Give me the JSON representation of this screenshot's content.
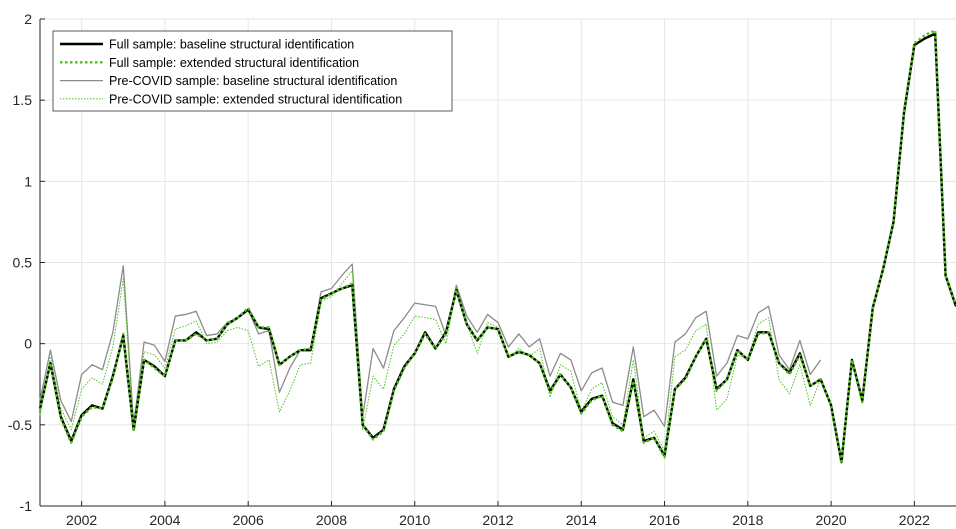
{
  "chart_data": {
    "type": "line",
    "title": "",
    "xlabel": "",
    "ylabel": "",
    "xlim": [
      2001,
      2023
    ],
    "ylim": [
      -1,
      2
    ],
    "grid": true,
    "legend_position": "top-left",
    "xticks": [
      2002,
      2004,
      2006,
      2008,
      2010,
      2012,
      2014,
      2016,
      2018,
      2020,
      2022
    ],
    "xtick_labels": [
      "2002",
      "2004",
      "2006",
      "2008",
      "2010",
      "2012",
      "2014",
      "2016",
      "2018",
      "2020",
      "2022"
    ],
    "yticks": [
      -1,
      -0.5,
      0,
      0.5,
      1,
      1.5,
      2
    ],
    "ytick_labels": [
      "-1",
      "-0.5",
      "0",
      "0.5",
      "1",
      "1.5",
      "2"
    ],
    "series": [
      {
        "name": "Full sample: baseline structural identification",
        "color": "#000000",
        "style": "solid-thick",
        "x": [
          2001.0,
          2001.25,
          2001.5,
          2001.75,
          2002.0,
          2002.25,
          2002.5,
          2002.75,
          2003.0,
          2003.25,
          2003.5,
          2003.75,
          2004.0,
          2004.25,
          2004.5,
          2004.75,
          2005.0,
          2005.25,
          2005.5,
          2005.75,
          2006.0,
          2006.25,
          2006.5,
          2006.75,
          2007.0,
          2007.25,
          2007.5,
          2007.75,
          2008.0,
          2008.25,
          2008.5,
          2008.75,
          2009.0,
          2009.25,
          2009.5,
          2009.75,
          2010.0,
          2010.25,
          2010.5,
          2010.75,
          2011.0,
          2011.25,
          2011.5,
          2011.75,
          2012.0,
          2012.25,
          2012.5,
          2012.75,
          2013.0,
          2013.25,
          2013.5,
          2013.75,
          2014.0,
          2014.25,
          2014.5,
          2014.75,
          2015.0,
          2015.25,
          2015.5,
          2015.75,
          2016.0,
          2016.25,
          2016.5,
          2016.75,
          2017.0,
          2017.25,
          2017.5,
          2017.75,
          2018.0,
          2018.25,
          2018.5,
          2018.75,
          2019.0,
          2019.25,
          2019.5,
          2019.75,
          2020.0,
          2020.25,
          2020.5,
          2020.75,
          2021.0,
          2021.25,
          2021.5,
          2021.75,
          2022.0,
          2022.25,
          2022.5,
          2022.75,
          2023.0
        ],
        "y": [
          -0.4,
          -0.12,
          -0.45,
          -0.6,
          -0.44,
          -0.38,
          -0.4,
          -0.2,
          0.05,
          -0.53,
          -0.1,
          -0.14,
          -0.2,
          0.02,
          0.02,
          0.07,
          0.02,
          0.03,
          0.12,
          0.16,
          0.21,
          0.1,
          0.09,
          -0.13,
          -0.08,
          -0.04,
          -0.04,
          0.28,
          0.31,
          0.34,
          0.36,
          -0.5,
          -0.58,
          -0.53,
          -0.28,
          -0.14,
          -0.06,
          0.07,
          -0.03,
          0.07,
          0.33,
          0.12,
          0.02,
          0.1,
          0.09,
          -0.08,
          -0.05,
          -0.07,
          -0.12,
          -0.29,
          -0.19,
          -0.27,
          -0.42,
          -0.34,
          -0.32,
          -0.49,
          -0.53,
          -0.22,
          -0.6,
          -0.58,
          -0.69,
          -0.28,
          -0.21,
          -0.08,
          0.03,
          -0.28,
          -0.22,
          -0.04,
          -0.1,
          0.07,
          0.07,
          -0.12,
          -0.18,
          -0.06,
          -0.26,
          -0.22,
          -0.38,
          -0.73,
          -0.1,
          -0.35,
          0.22,
          0.46,
          0.75,
          1.42,
          1.84,
          1.88,
          1.91,
          0.42,
          0.23
        ]
      },
      {
        "name": "Full sample: extended structural identification",
        "color": "#4cc219",
        "style": "dotted-thick",
        "x": [
          2001.0,
          2001.25,
          2001.5,
          2001.75,
          2002.0,
          2002.25,
          2002.5,
          2002.75,
          2003.0,
          2003.25,
          2003.5,
          2003.75,
          2004.0,
          2004.25,
          2004.5,
          2004.75,
          2005.0,
          2005.25,
          2005.5,
          2005.75,
          2006.0,
          2006.25,
          2006.5,
          2006.75,
          2007.0,
          2007.25,
          2007.5,
          2007.75,
          2008.0,
          2008.25,
          2008.5,
          2008.75,
          2009.0,
          2009.25,
          2009.5,
          2009.75,
          2010.0,
          2010.25,
          2010.5,
          2010.75,
          2011.0,
          2011.25,
          2011.5,
          2011.75,
          2012.0,
          2012.25,
          2012.5,
          2012.75,
          2013.0,
          2013.25,
          2013.5,
          2013.75,
          2014.0,
          2014.25,
          2014.5,
          2014.75,
          2015.0,
          2015.25,
          2015.5,
          2015.75,
          2016.0,
          2016.25,
          2016.5,
          2016.75,
          2017.0,
          2017.25,
          2017.5,
          2017.75,
          2018.0,
          2018.25,
          2018.5,
          2018.75,
          2019.0,
          2019.25,
          2019.5,
          2019.75,
          2020.0,
          2020.25,
          2020.5,
          2020.75,
          2021.0,
          2021.25,
          2021.5,
          2021.75,
          2022.0,
          2022.25,
          2022.5,
          2022.75,
          2023.0
        ],
        "y": [
          -0.41,
          -0.12,
          -0.46,
          -0.61,
          -0.45,
          -0.39,
          -0.4,
          -0.21,
          0.06,
          -0.54,
          -0.1,
          -0.15,
          -0.2,
          0.02,
          0.02,
          0.06,
          0.02,
          0.03,
          0.12,
          0.16,
          0.22,
          0.1,
          0.1,
          -0.13,
          -0.08,
          -0.04,
          -0.03,
          0.27,
          0.31,
          0.34,
          0.37,
          -0.5,
          -0.59,
          -0.54,
          -0.29,
          -0.15,
          -0.06,
          0.06,
          -0.03,
          0.06,
          0.33,
          0.12,
          0.02,
          0.1,
          0.09,
          -0.08,
          -0.05,
          -0.07,
          -0.12,
          -0.3,
          -0.19,
          -0.27,
          -0.43,
          -0.35,
          -0.32,
          -0.5,
          -0.54,
          -0.23,
          -0.61,
          -0.58,
          -0.7,
          -0.28,
          -0.22,
          -0.08,
          0.03,
          -0.29,
          -0.22,
          -0.04,
          -0.1,
          0.06,
          0.07,
          -0.12,
          -0.19,
          -0.07,
          -0.26,
          -0.22,
          -0.38,
          -0.74,
          -0.1,
          -0.36,
          0.22,
          0.46,
          0.76,
          1.43,
          1.85,
          1.9,
          1.93,
          0.42,
          0.24
        ]
      },
      {
        "name": "Pre-COVID sample: baseline structural identification",
        "color": "#8c8c8c",
        "style": "solid-thin",
        "x": [
          2001.0,
          2001.25,
          2001.5,
          2001.75,
          2002.0,
          2002.25,
          2002.5,
          2002.75,
          2003.0,
          2003.25,
          2003.5,
          2003.75,
          2004.0,
          2004.25,
          2004.5,
          2004.75,
          2005.0,
          2005.25,
          2005.5,
          2005.75,
          2006.0,
          2006.25,
          2006.5,
          2006.75,
          2007.0,
          2007.25,
          2007.5,
          2007.75,
          2008.0,
          2008.25,
          2008.5,
          2008.75,
          2009.0,
          2009.25,
          2009.5,
          2009.75,
          2010.0,
          2010.25,
          2010.5,
          2010.75,
          2011.0,
          2011.25,
          2011.5,
          2011.75,
          2012.0,
          2012.25,
          2012.5,
          2012.75,
          2013.0,
          2013.25,
          2013.5,
          2013.75,
          2014.0,
          2014.25,
          2014.5,
          2014.75,
          2015.0,
          2015.25,
          2015.5,
          2015.75,
          2016.0,
          2016.25,
          2016.5,
          2016.75,
          2017.0,
          2017.25,
          2017.5,
          2017.75,
          2018.0,
          2018.25,
          2018.5,
          2018.75,
          2019.0,
          2019.25,
          2019.5,
          2019.75
        ],
        "y": [
          -0.35,
          -0.04,
          -0.35,
          -0.48,
          -0.19,
          -0.13,
          -0.16,
          0.07,
          0.48,
          -0.5,
          0.01,
          -0.01,
          -0.11,
          0.17,
          0.18,
          0.2,
          0.05,
          0.06,
          0.13,
          0.16,
          0.21,
          0.06,
          0.08,
          -0.3,
          -0.15,
          -0.04,
          -0.03,
          0.32,
          0.34,
          0.42,
          0.49,
          -0.45,
          -0.03,
          -0.15,
          0.08,
          0.16,
          0.25,
          0.24,
          0.23,
          0.05,
          0.36,
          0.17,
          0.07,
          0.18,
          0.13,
          -0.02,
          0.06,
          -0.02,
          0.03,
          -0.2,
          -0.06,
          -0.1,
          -0.29,
          -0.18,
          -0.15,
          -0.36,
          -0.38,
          -0.02,
          -0.45,
          -0.41,
          -0.51,
          0.01,
          0.06,
          0.16,
          0.2,
          -0.2,
          -0.12,
          0.05,
          0.03,
          0.19,
          0.23,
          -0.07,
          -0.16,
          0.02,
          -0.19,
          -0.1
        ]
      },
      {
        "name": "Pre-COVID sample: extended structural identification",
        "color": "#4cc219",
        "style": "dotted-thin",
        "x": [
          2001.0,
          2001.25,
          2001.5,
          2001.75,
          2002.0,
          2002.25,
          2002.5,
          2002.75,
          2003.0,
          2003.25,
          2003.5,
          2003.75,
          2004.0,
          2004.25,
          2004.5,
          2004.75,
          2005.0,
          2005.25,
          2005.5,
          2005.75,
          2006.0,
          2006.25,
          2006.5,
          2006.75,
          2007.0,
          2007.25,
          2007.5,
          2007.75,
          2008.0,
          2008.25,
          2008.5,
          2008.75,
          2009.0,
          2009.25,
          2009.5,
          2009.75,
          2010.0,
          2010.25,
          2010.5,
          2010.75,
          2011.0,
          2011.25,
          2011.5,
          2011.75,
          2012.0,
          2012.25,
          2012.5,
          2012.75,
          2013.0,
          2013.25,
          2013.5,
          2013.75,
          2014.0,
          2014.25,
          2014.5,
          2014.75,
          2015.0,
          2015.25,
          2015.5,
          2015.75,
          2016.0,
          2016.25,
          2016.5,
          2016.75,
          2017.0,
          2017.25,
          2017.5,
          2017.75,
          2018.0,
          2018.25,
          2018.5,
          2018.75,
          2019.0,
          2019.25,
          2019.5,
          2019.75
        ],
        "y": [
          -0.44,
          -0.08,
          -0.4,
          -0.53,
          -0.28,
          -0.21,
          -0.25,
          -0.02,
          0.4,
          -0.52,
          -0.05,
          -0.07,
          -0.15,
          0.09,
          0.11,
          0.14,
          0.0,
          0.01,
          0.08,
          0.1,
          0.08,
          -0.14,
          -0.1,
          -0.42,
          -0.29,
          -0.13,
          -0.12,
          0.26,
          0.29,
          0.37,
          0.45,
          -0.53,
          -0.2,
          -0.28,
          -0.01,
          0.06,
          0.17,
          0.16,
          0.15,
          0.0,
          0.34,
          0.12,
          -0.06,
          0.13,
          0.1,
          -0.09,
          -0.03,
          -0.08,
          -0.03,
          -0.33,
          -0.13,
          -0.17,
          -0.42,
          -0.28,
          -0.24,
          -0.45,
          -0.5,
          -0.1,
          -0.58,
          -0.54,
          -0.66,
          -0.08,
          -0.04,
          0.08,
          0.12,
          -0.41,
          -0.34,
          -0.07,
          -0.09,
          0.12,
          0.16,
          -0.22,
          -0.31,
          -0.13,
          -0.38,
          -0.22
        ]
      }
    ]
  }
}
